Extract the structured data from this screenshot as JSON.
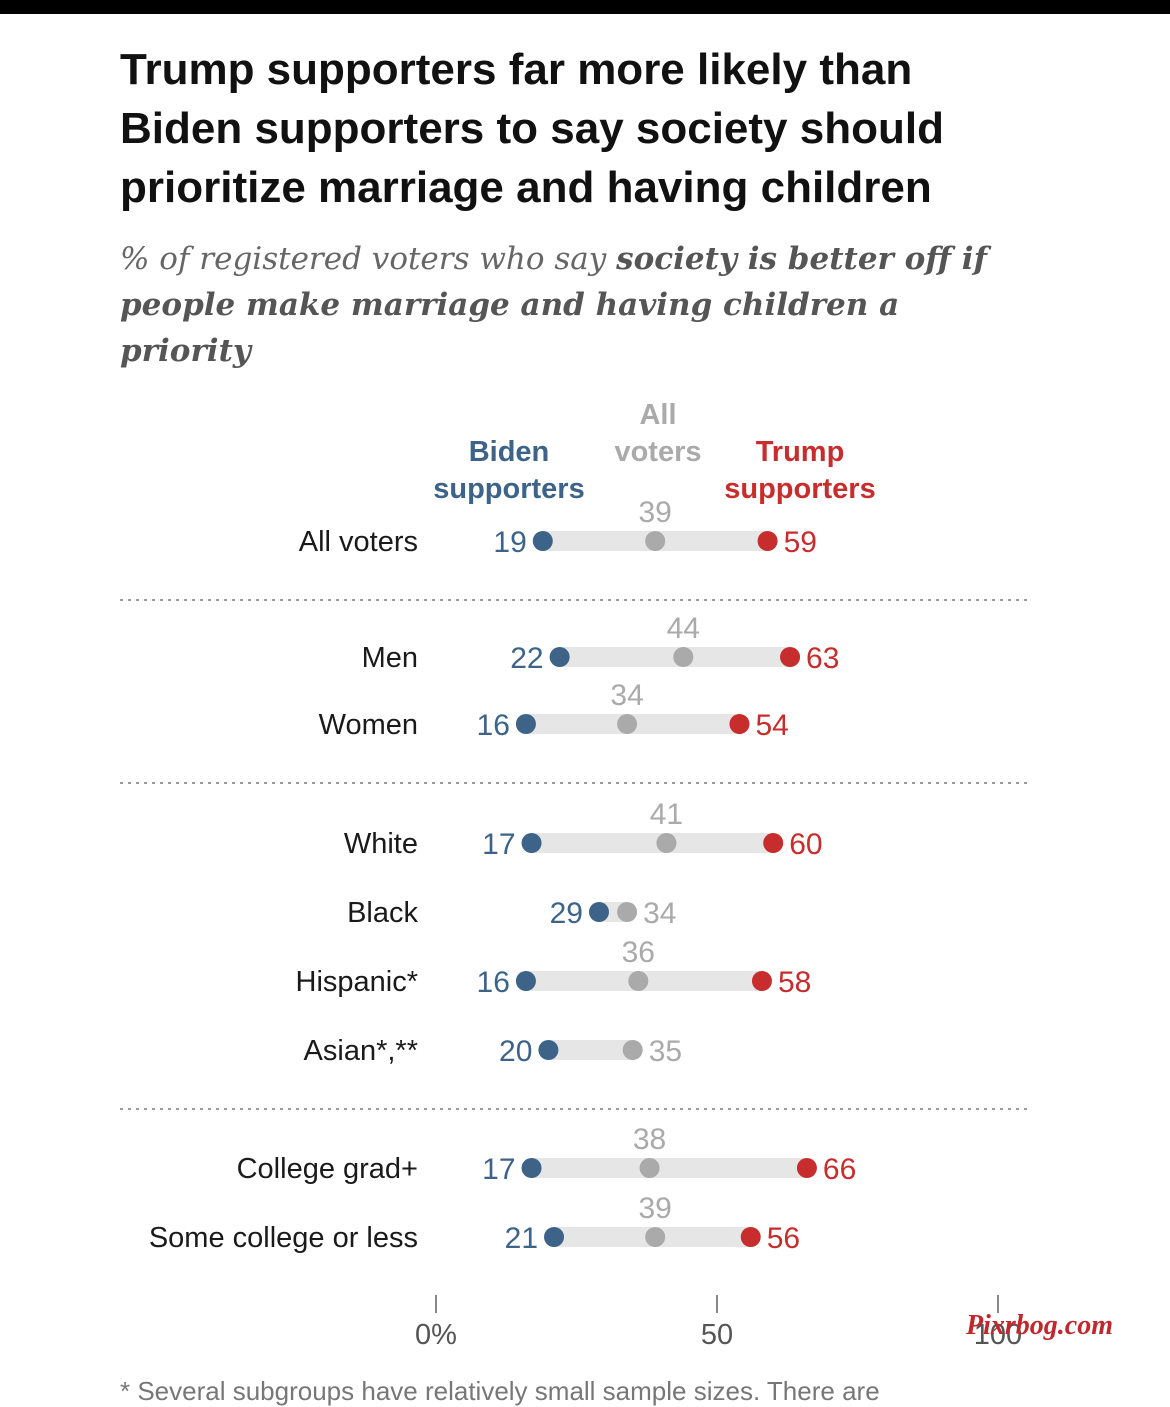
{
  "title_lines": [
    "Trump supporters far more likely than",
    "Biden supporters to say society should",
    "prioritize marriage and having children"
  ],
  "subtitle": {
    "plain": "% of registered voters who say ",
    "bold": "society is better off if people make marriage and having children a priority"
  },
  "footnote": "* Several subgroups have relatively small sample sizes. There are",
  "watermark": "Pixrbog.com",
  "colors": {
    "biden": "#3d6388",
    "all": "#aaaaaa",
    "trump": "#c82d2d",
    "bar": "#e6e6e6"
  },
  "chart_data": {
    "type": "dot",
    "legend": [
      {
        "key": "biden",
        "lines": [
          "Biden",
          "supporters"
        ]
      },
      {
        "key": "all",
        "lines": [
          "All",
          "voters"
        ]
      },
      {
        "key": "trump",
        "lines": [
          "Trump",
          "supporters"
        ]
      }
    ],
    "categories": [
      "All voters",
      "Men",
      "Women",
      "White",
      "Black",
      "Hispanic*",
      "Asian*,**",
      "College grad+",
      "Some college or less"
    ],
    "series": [
      {
        "key": "biden",
        "name": "Biden supporters",
        "values": [
          19,
          22,
          16,
          17,
          29,
          16,
          20,
          17,
          21
        ]
      },
      {
        "key": "all",
        "name": "All voters",
        "values": [
          39,
          44,
          34,
          41,
          34,
          36,
          35,
          38,
          39
        ]
      },
      {
        "key": "trump",
        "name": "Trump supporters",
        "values": [
          59,
          63,
          54,
          60,
          null,
          58,
          null,
          66,
          56
        ]
      }
    ],
    "groups": [
      [
        0
      ],
      [
        1,
        2
      ],
      [
        3,
        4,
        5,
        6
      ],
      [
        7,
        8
      ]
    ],
    "xlim": [
      0,
      100
    ],
    "ticks": [
      {
        "value": 0,
        "label": "0%"
      },
      {
        "value": 50,
        "label": "50"
      },
      {
        "value": 100,
        "label": "100"
      }
    ]
  }
}
